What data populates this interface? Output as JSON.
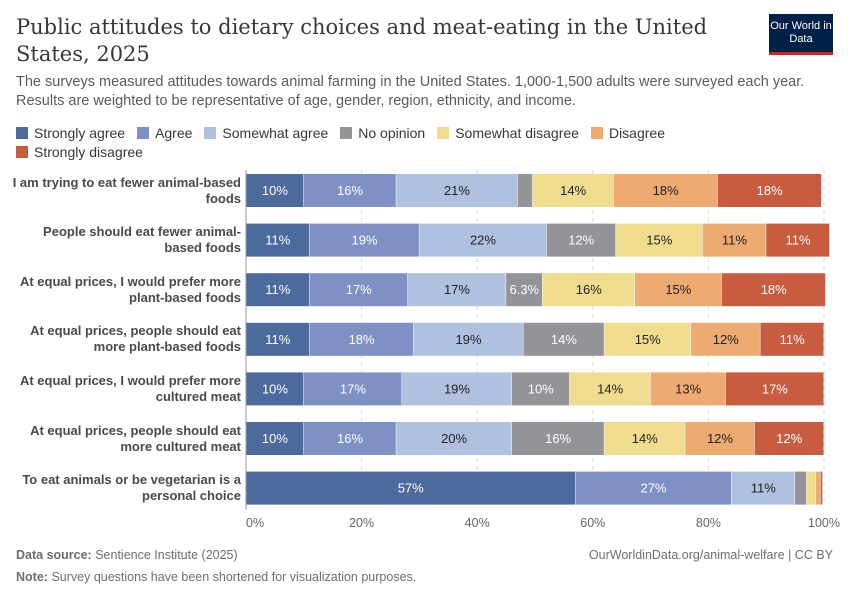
{
  "header": {
    "title": "Public attitudes to dietary choices and meat-eating in the United States, 2025",
    "subtitle": "The surveys measured attitudes towards animal farming in the United States. 1,000-1,500 adults were surveyed each year. Results are weighted to be representative of age, gender, region, ethnicity, and income.",
    "logo": "Our World in Data"
  },
  "footer": {
    "source_label": "Data source:",
    "source": "Sentience Institute (2025)",
    "url": "OurWorldinData.org/animal-welfare | CC BY",
    "note_label": "Note:",
    "note": "Survey questions have been shortened for visualization purposes."
  },
  "chart_data": {
    "type": "bar",
    "orientation": "horizontal",
    "stacked": true,
    "xlim": [
      0,
      100
    ],
    "grid": true,
    "legend_position": "top",
    "x_ticks": [
      "0%",
      "20%",
      "40%",
      "60%",
      "80%",
      "100%"
    ],
    "categories": [
      "I am trying to eat fewer animal-based foods",
      "People should eat fewer animal-based foods",
      "At equal prices, I would prefer more plant-based foods",
      "At equal prices, people should eat more plant-based foods",
      "At equal prices, I would prefer more cultured meat",
      "At equal prices, people should eat more cultured meat",
      "To eat animals or be vegetarian is a personal choice"
    ],
    "series": [
      {
        "name": "Strongly agree",
        "color": "#4c6a9c",
        "values": [
          10,
          11,
          11,
          11,
          10,
          10,
          57
        ]
      },
      {
        "name": "Agree",
        "color": "#7f91c4",
        "values": [
          16,
          19,
          17,
          18,
          17,
          16,
          27
        ]
      },
      {
        "name": "Somewhat agree",
        "color": "#b0c0df",
        "values": [
          21,
          22,
          17,
          19,
          19,
          20,
          11
        ]
      },
      {
        "name": "No opinion",
        "color": "#939398",
        "values": [
          2.6,
          12,
          6.3,
          14,
          10,
          16,
          2
        ]
      },
      {
        "name": "Somewhat disagree",
        "color": "#f0dc8e",
        "values": [
          14,
          15,
          16,
          15,
          14,
          14,
          1.6
        ]
      },
      {
        "name": "Disagree",
        "color": "#edab72",
        "values": [
          18,
          11,
          15,
          12,
          13,
          12,
          0.8
        ]
      },
      {
        "name": "Strongly disagree",
        "color": "#c85c40",
        "values": [
          18,
          11,
          18,
          11,
          17,
          12,
          0.4
        ]
      }
    ]
  }
}
